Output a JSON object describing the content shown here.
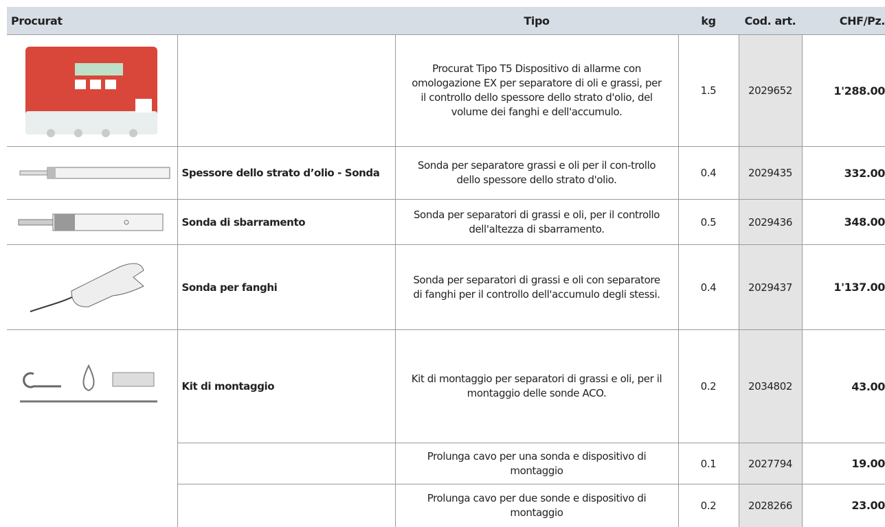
{
  "table": {
    "header": [
      "Procurat",
      "Tipo",
      "kg",
      "Cod. art.",
      "CHF/Pz."
    ],
    "rows": [
      {
        "description": "Procurat Tipo T5 Dispositivo di allarme con omologazione EX per separatore di oli e grassi, per il controllo dello spessore dello strato d'olio, del volume dei fanghi e dell'accumulo.",
        "kg": "1.5",
        "code": "2029652",
        "price": "1'288.00"
      },
      {
        "name": "Spessore dello strato d’olio - Sonda",
        "description": "Sonda per separatore grassi e oli per il con-trollo dello spessore dello strato d'olio.",
        "kg": "0.4",
        "code": "2029435",
        "price": "332.00"
      },
      {
        "name": "Sonda di sbarramento",
        "description": "Sonda per separatori di grassi e oli, per il controllo dell'altezza di sbarramento.",
        "kg": "0.5",
        "code": "2029436",
        "price": "348.00"
      },
      {
        "name": "Sonda per fanghi",
        "description": "Sonda per separatori di grassi e oli con separatore di fanghi per il controllo dell'accumulo degli stessi.",
        "kg": "0.4",
        "code": "2029437",
        "price": "1'137.00"
      },
      {
        "name": "Kit di montaggio",
        "description": "Kit di montaggio per separatori di grassi e oli, per il montaggio delle sonde ACO.",
        "kg": "0.2",
        "code": "2034802",
        "price": "43.00"
      },
      {
        "description": "Prolunga cavo per una sonda e dispositivo di montaggio",
        "kg": "0.1",
        "code": "2027794",
        "price": "19.00"
      },
      {
        "description": "Prolunga cavo per due sonde e dispositivo di montaggio",
        "kg": "0.2",
        "code": "2028266",
        "price": "23.00"
      }
    ]
  }
}
